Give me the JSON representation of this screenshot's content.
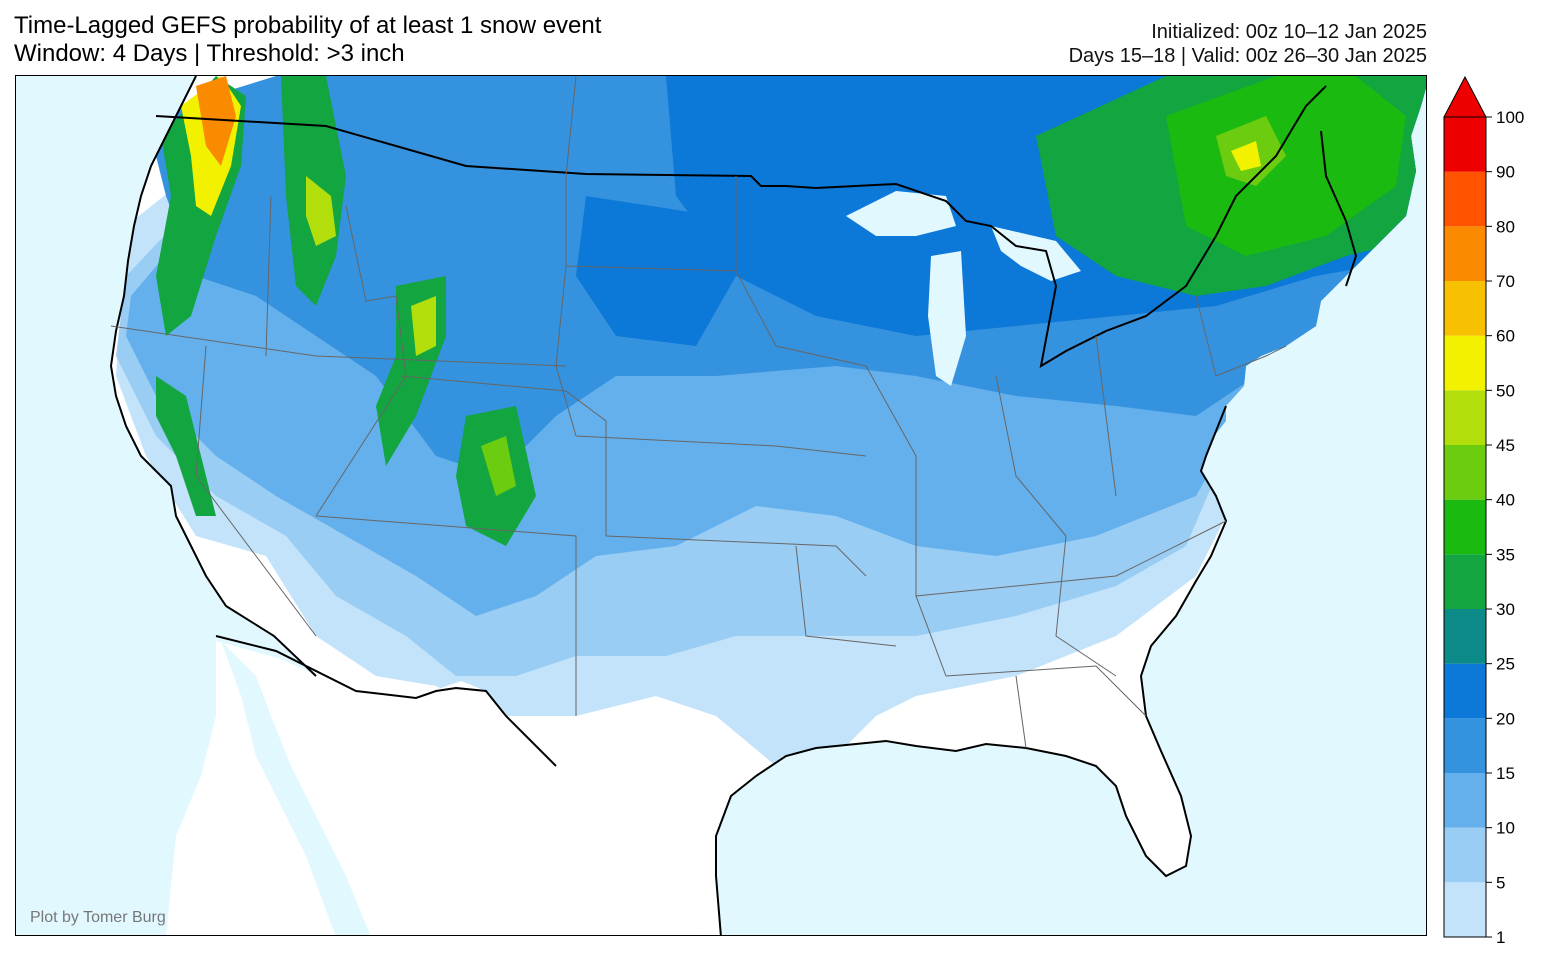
{
  "title": {
    "line1": "Time-Lagged GEFS probability of at least 1 snow event",
    "line2": "Window: 4 Days | Threshold: >3 inch"
  },
  "init": {
    "line1": "Initialized: 00z 10–12 Jan 2025",
    "line2": "Days 15–18 | Valid: 00z 26–30 Jan 2025"
  },
  "credit": "Plot by Tomer Burg",
  "colorbar": {
    "ticks": [
      "1",
      "5",
      "10",
      "15",
      "20",
      "25",
      "30",
      "35",
      "40",
      "45",
      "50",
      "60",
      "70",
      "80",
      "90",
      "100"
    ],
    "colors": [
      "#c3e3fa",
      "#99cdf3",
      "#64b0ec",
      "#3592de",
      "#0c78d8",
      "#0c8a88",
      "#12a540",
      "#1bba10",
      "#6ccc0f",
      "#b2de0c",
      "#f2f200",
      "#f7c000",
      "#fa8a00",
      "#ff5300",
      "#ef0000"
    ],
    "extend_color": "#ef0000"
  },
  "map": {
    "ocean_color": "#e2f8ff",
    "land_color": "#ffffff",
    "border_color": "#000000",
    "state_line_color": "#666666"
  }
}
